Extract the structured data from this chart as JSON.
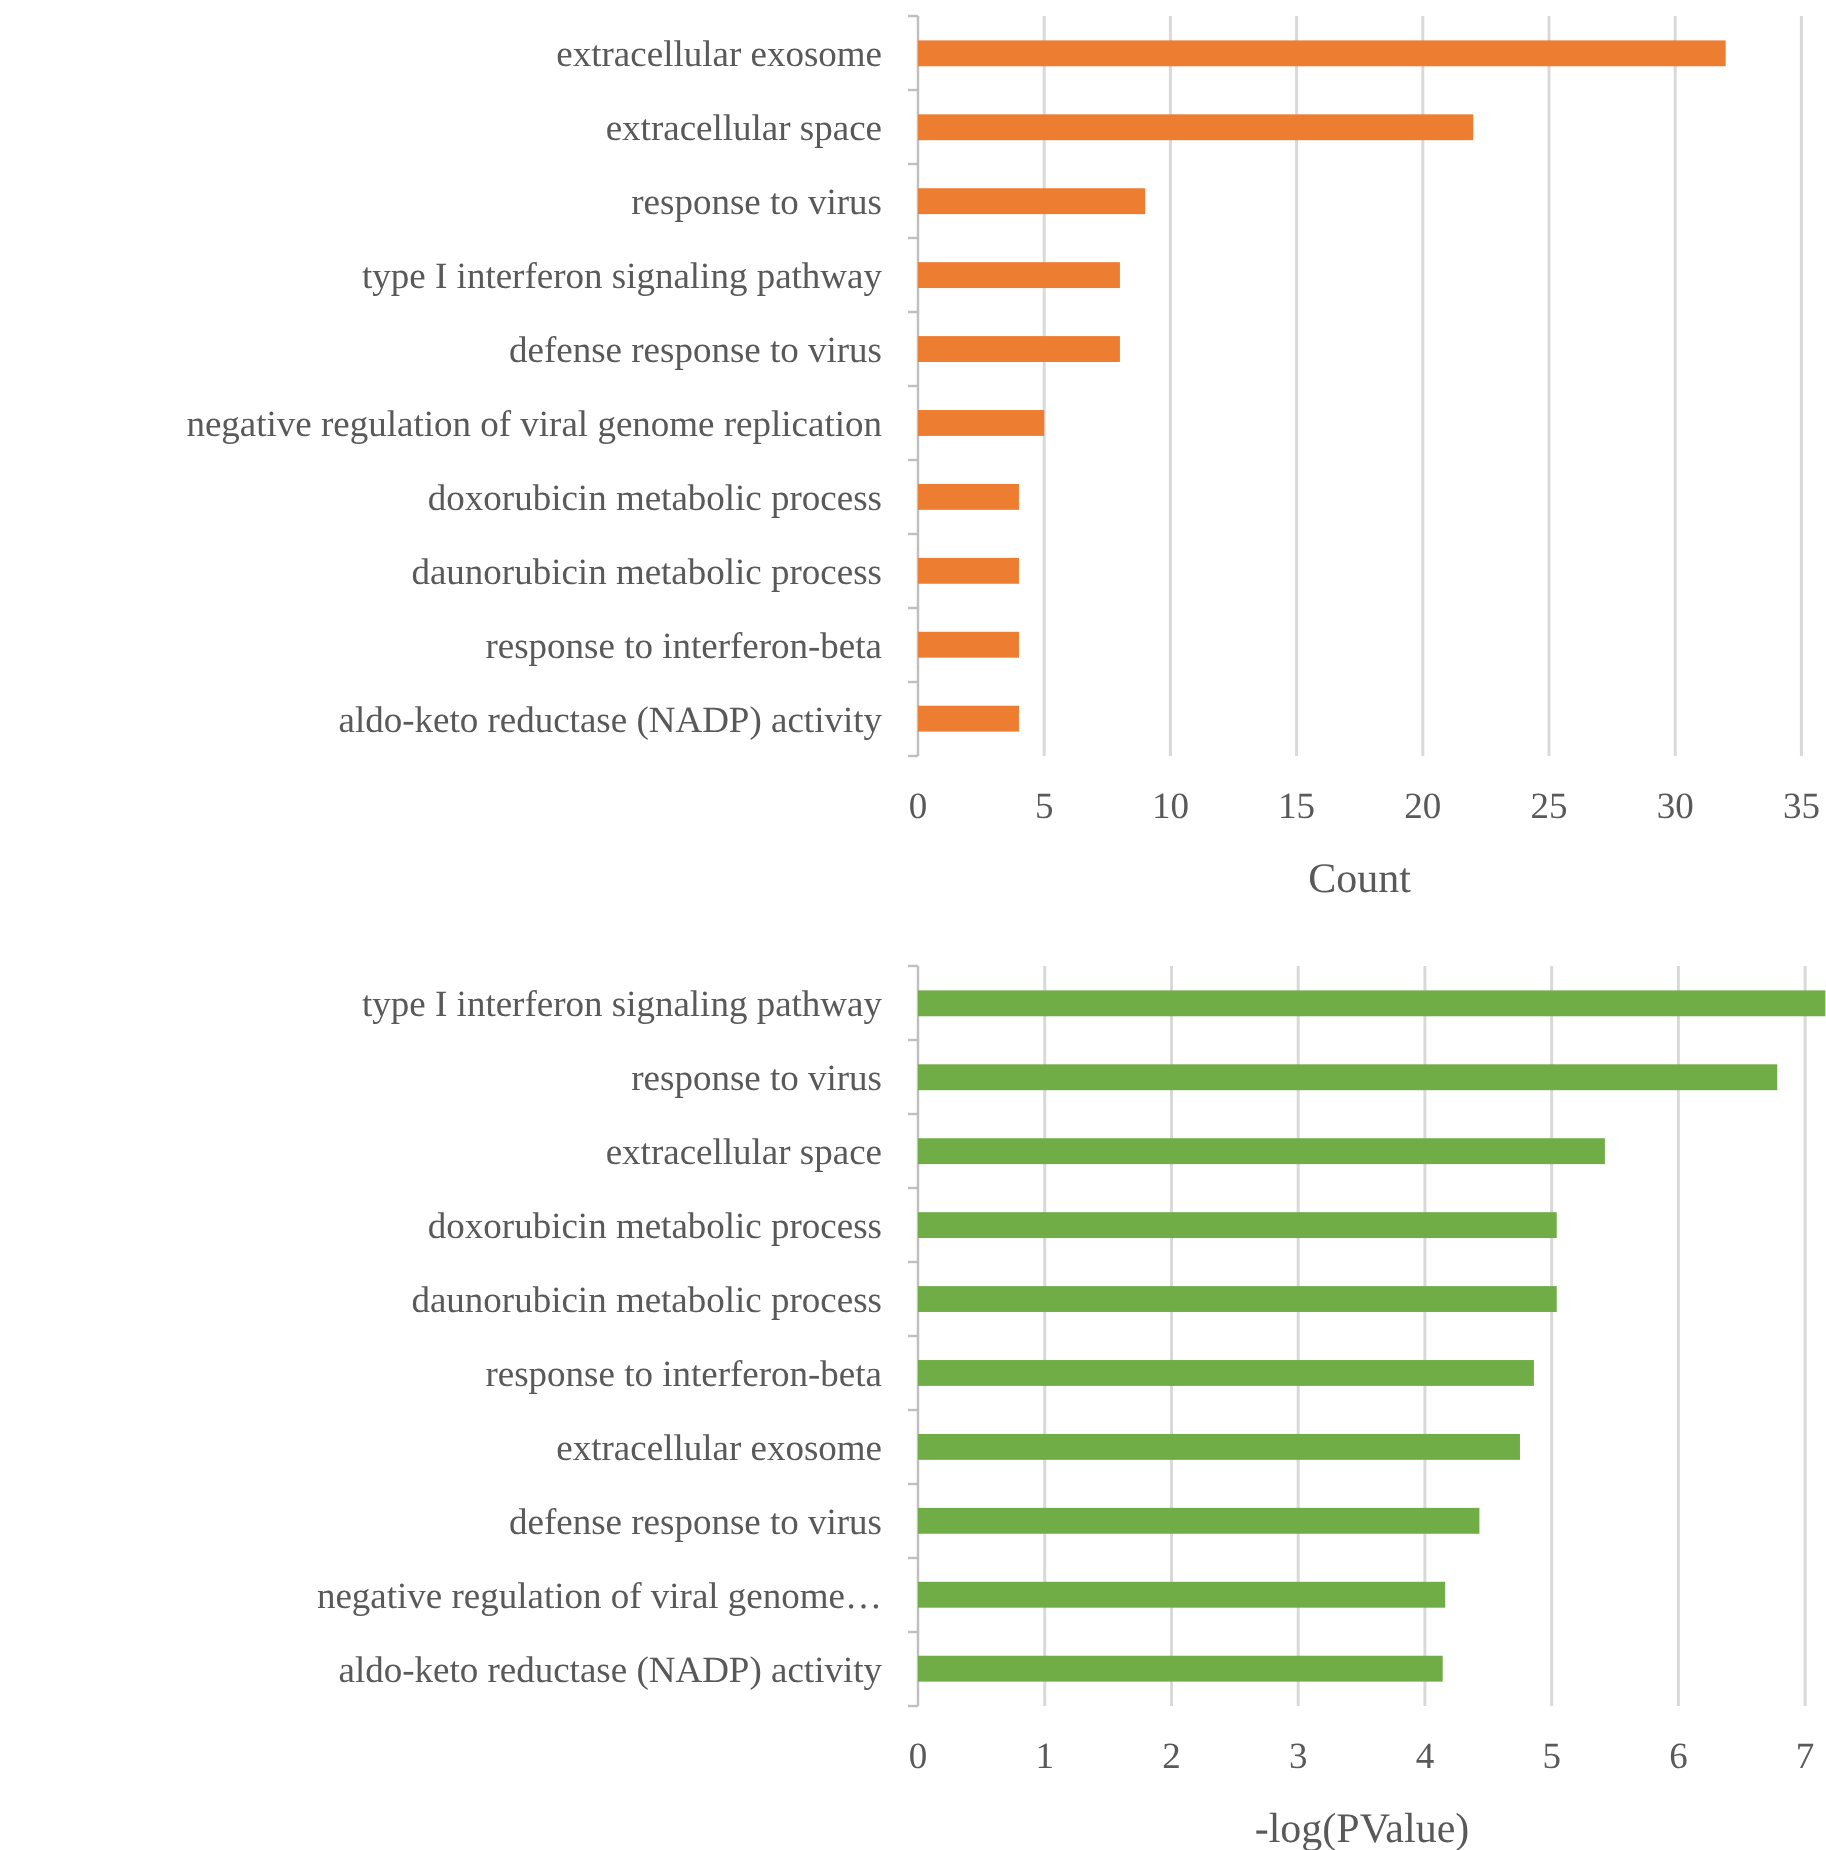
{
  "chart_data": [
    {
      "type": "bar",
      "orientation": "horizontal",
      "xlabel": "Count",
      "categories": [
        "extracellular exosome",
        "extracellular space",
        "response to virus",
        "type I interferon signaling pathway",
        "defense response to virus",
        "negative regulation of viral genome replication",
        "doxorubicin metabolic process",
        "daunorubicin metabolic process",
        "response to interferon-beta",
        "aldo-keto reductase (NADP) activity"
      ],
      "values": [
        32,
        22,
        9,
        8,
        8,
        5,
        4,
        4,
        4,
        4
      ],
      "color": "#ed7d31",
      "xlim": [
        0,
        35
      ],
      "xticks": [
        0,
        5,
        10,
        15,
        20,
        25,
        30,
        35
      ],
      "grid": "x"
    },
    {
      "type": "bar",
      "orientation": "horizontal",
      "xlabel": "-log(PValue)",
      "categories": [
        "type I interferon signaling pathway",
        "response to virus",
        "extracellular space",
        "doxorubicin metabolic process",
        "daunorubicin metabolic process",
        "response to interferon-beta",
        "extracellular exosome",
        "defense response to virus",
        "negative regulation of viral genome…",
        "aldo-keto reductase (NADP) activity"
      ],
      "values": [
        7.16,
        6.78,
        5.42,
        5.04,
        5.04,
        4.86,
        4.75,
        4.43,
        4.16,
        4.14
      ],
      "color": "#70ad47",
      "xlim": [
        0,
        7.16
      ],
      "xticks": [
        0,
        1,
        2,
        3,
        4,
        5,
        6,
        7
      ],
      "grid": "x"
    }
  ]
}
